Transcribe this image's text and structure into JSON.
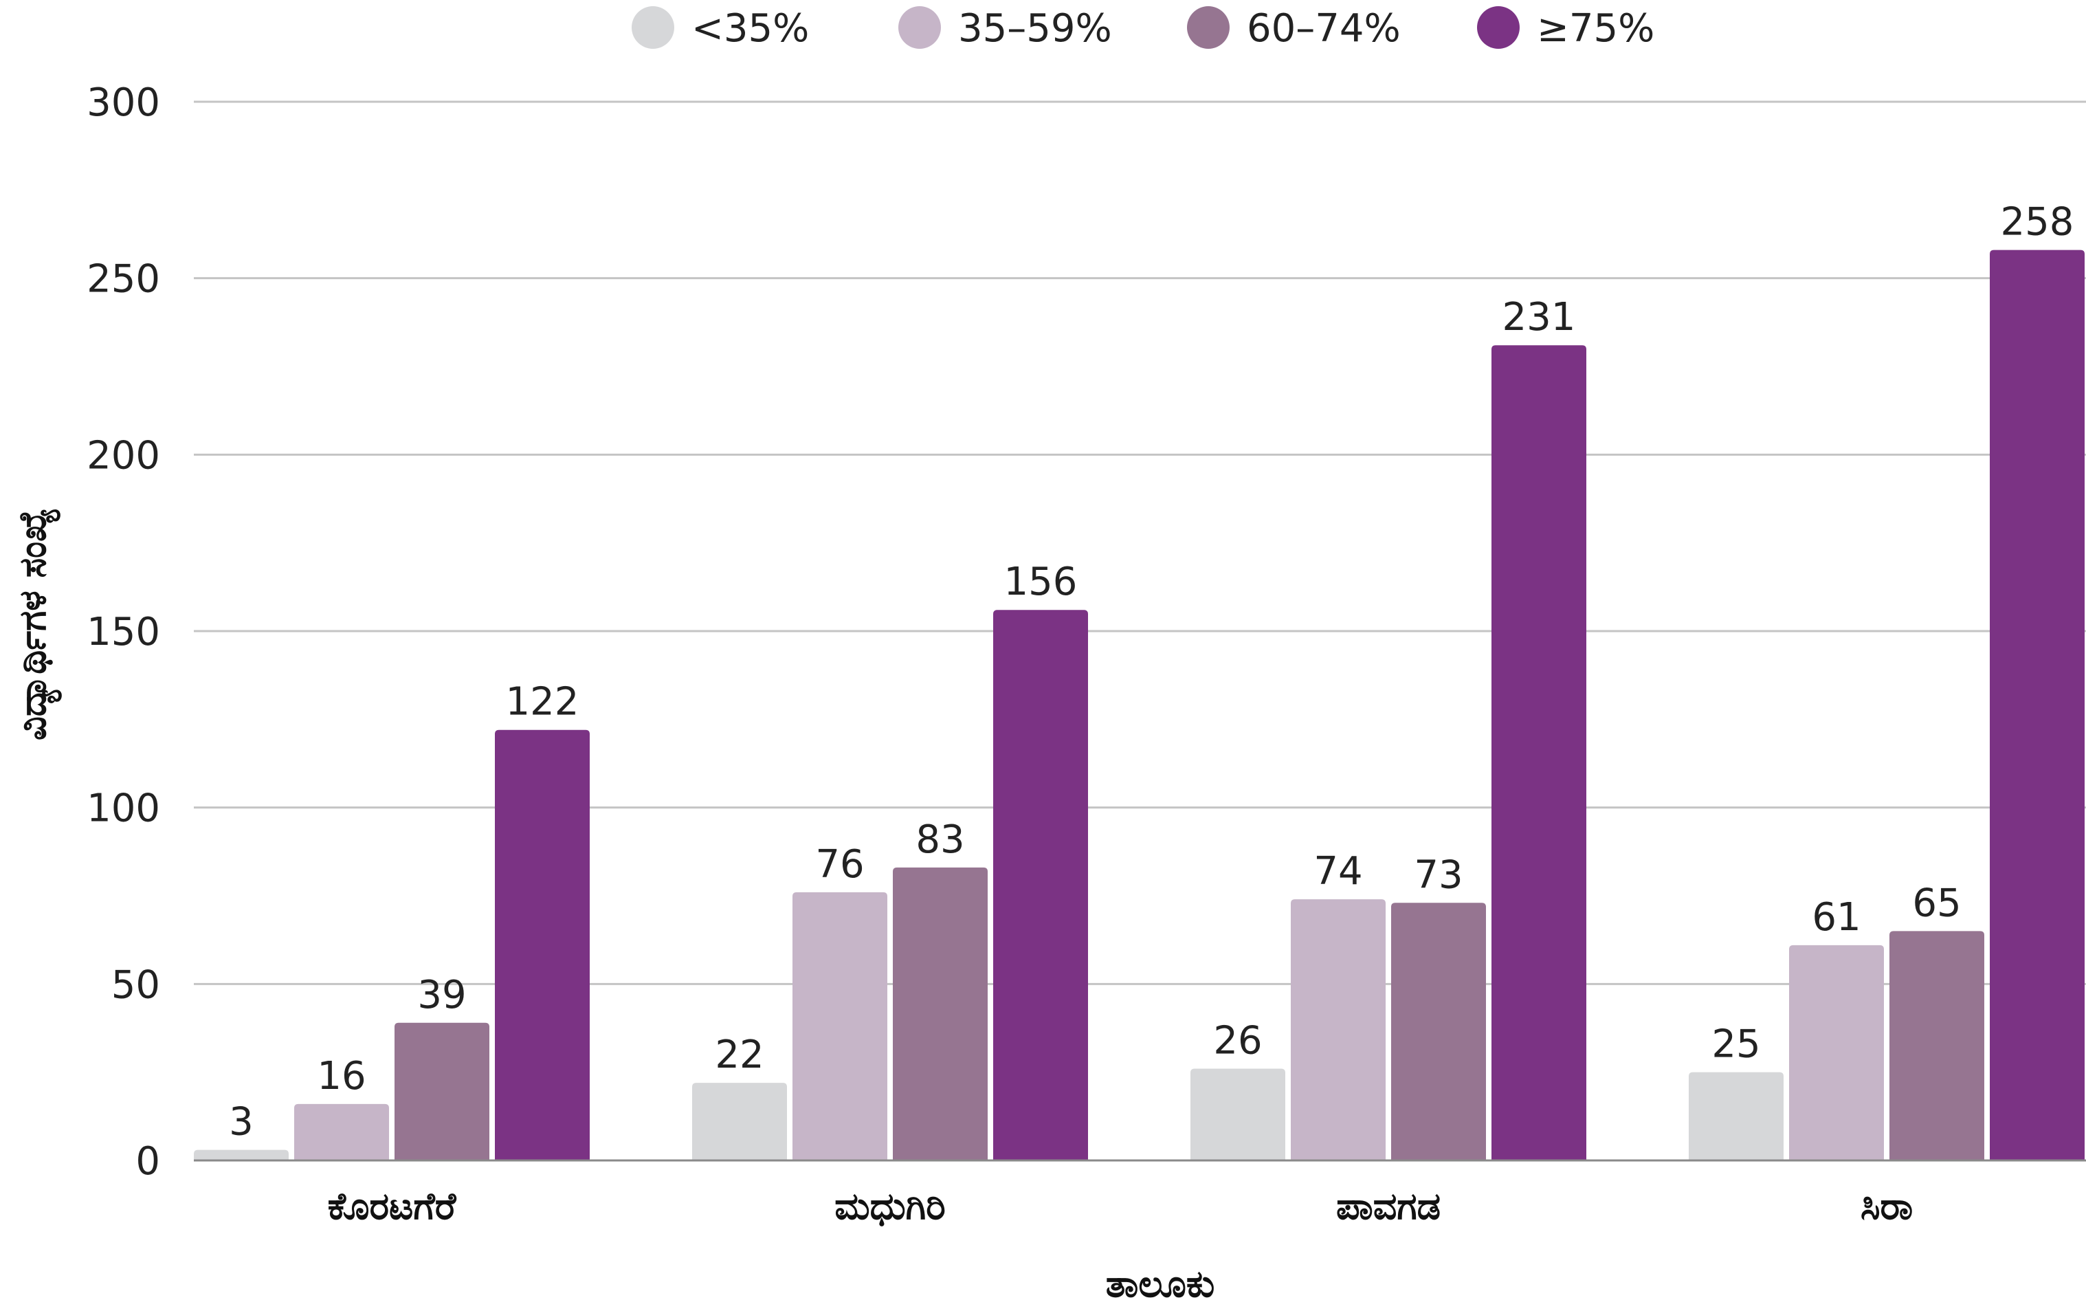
{
  "chart_data": {
    "type": "bar",
    "categories": [
      "ಕೊರಟಗೆರೆ",
      "ಮಧುಗಿರಿ",
      "ಪಾವಗಡ",
      "ಸಿರಾ"
    ],
    "series": [
      {
        "name": "<35%",
        "color": "#d6d7d9",
        "values": [
          3,
          22,
          26,
          25
        ]
      },
      {
        "name": "35–59%",
        "color": "#c6b5c8",
        "values": [
          16,
          76,
          74,
          61
        ]
      },
      {
        "name": "60–74%",
        "color": "#967591",
        "values": [
          39,
          83,
          73,
          65
        ]
      },
      {
        "name": "≥75%",
        "color": "#7b3384",
        "values": [
          122,
          156,
          231,
          258
        ]
      }
    ],
    "xlabel": "ತಾಲೂಕು",
    "ylabel": "ವಿದ್ಯಾರ್ಥಿಗಳ ಸಂಖ್ಯೆ",
    "ylim": [
      0,
      300
    ],
    "yticks": [
      0,
      50,
      100,
      150,
      200,
      250,
      300
    ],
    "grid": true,
    "legend_position": "top-center",
    "show_data_labels": true
  }
}
